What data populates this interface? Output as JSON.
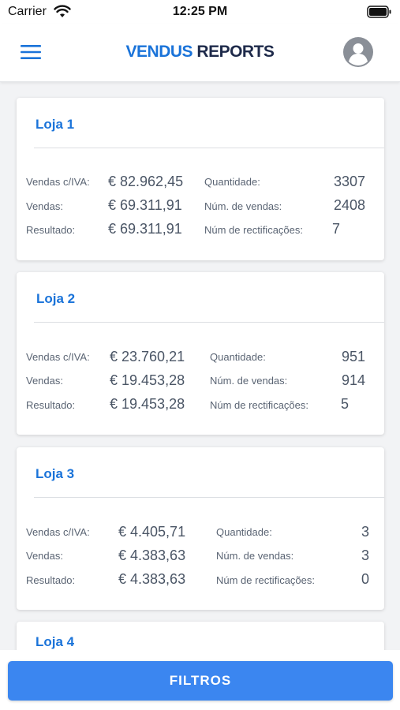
{
  "status_bar": {
    "carrier": "Carrier",
    "time": "12:25 PM"
  },
  "header": {
    "brand_part1": "VENDUS",
    "brand_part2": "REPORTS"
  },
  "labels": {
    "vendas_iva": "Vendas c/IVA:",
    "vendas": "Vendas:",
    "resultado": "Resultado:",
    "quantidade": "Quantidade:",
    "num_vendas": "Núm. de vendas:",
    "num_rectificacoes": "Núm de rectificações:"
  },
  "stores": [
    {
      "name": "Loja 1",
      "vendas_iva": "€ 82.962,45",
      "vendas": "€ 69.311,91",
      "resultado": "€ 69.311,91",
      "quantidade": "3307",
      "num_vendas": "2408",
      "num_rectificacoes": "7"
    },
    {
      "name": "Loja 2",
      "vendas_iva": "€ 23.760,21",
      "vendas": "€ 19.453,28",
      "resultado": "€ 19.453,28",
      "quantidade": "951",
      "num_vendas": "914",
      "num_rectificacoes": "5"
    },
    {
      "name": "Loja 3",
      "vendas_iva": "€ 4.405,71",
      "vendas": "€ 4.383,63",
      "resultado": "€ 4.383,63",
      "quantidade": "3",
      "num_vendas": "3",
      "num_rectificacoes": "0"
    },
    {
      "name": "Loja 4"
    }
  ],
  "footer": {
    "filtros_label": "FILTROS"
  },
  "colors": {
    "accent": "#1a73d9",
    "button": "#3b86f0",
    "brand_dark": "#1e2a4a"
  },
  "icons": {
    "menu": "hamburger-menu-icon",
    "avatar": "user-avatar-icon",
    "wifi": "wifi-icon",
    "battery": "battery-icon"
  }
}
